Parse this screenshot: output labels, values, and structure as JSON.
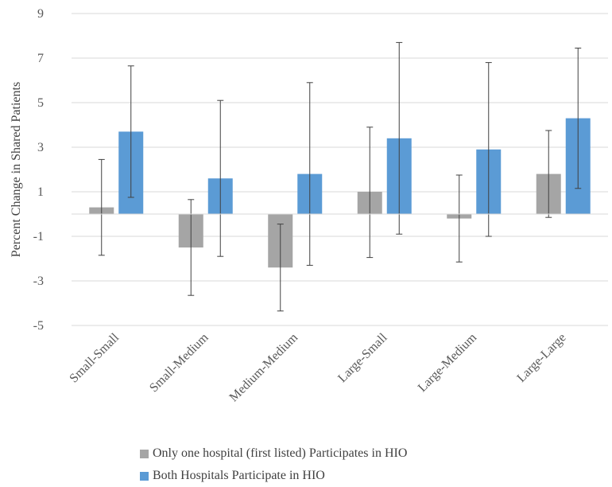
{
  "chart_data": {
    "type": "bar",
    "title": "",
    "xlabel": "",
    "ylabel": "Percent Change in Shared Patients",
    "ylim": [
      -5,
      9
    ],
    "yticks": [
      9,
      7,
      5,
      3,
      1,
      -1,
      -3,
      -5
    ],
    "grid": true,
    "legend_position": "bottom",
    "categories": [
      "Small-Small",
      "Small-Medium",
      "Medium-Medium",
      "Large-Small",
      "Large-Medium",
      "Large-Large"
    ],
    "series": [
      {
        "name": "Only one hospital (first listed) Participates in HIO",
        "color": "#a5a5a5",
        "values": [
          0.3,
          -1.5,
          -2.4,
          1.0,
          -0.2,
          1.8
        ],
        "error_low": [
          -1.85,
          -3.65,
          -4.35,
          -1.95,
          -2.15,
          -0.15
        ],
        "error_high": [
          2.45,
          0.65,
          -0.45,
          3.9,
          1.75,
          3.75
        ]
      },
      {
        "name": "Both Hospitals Participate in HIO",
        "color": "#5b9bd5",
        "values": [
          3.7,
          1.6,
          1.8,
          3.4,
          2.9,
          4.3
        ],
        "error_low": [
          0.75,
          -1.9,
          -2.3,
          -0.9,
          -1.0,
          1.15
        ],
        "error_high": [
          6.65,
          5.1,
          5.9,
          7.7,
          6.8,
          7.45
        ]
      }
    ]
  }
}
